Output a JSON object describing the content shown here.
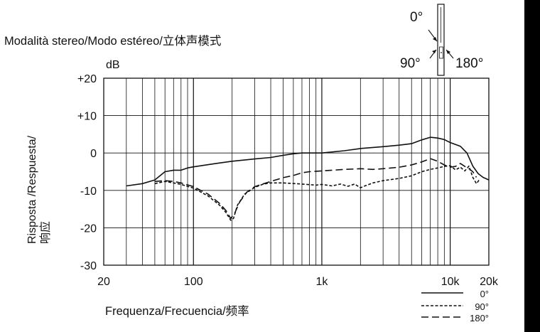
{
  "title": "Modalità stereo/Modo estéreo/立体声模式",
  "chart_data": {
    "type": "line",
    "ylabel_lines": [
      "Risposta /Respuesta/",
      "响应"
    ],
    "xlabel": "Frequenza/Frecuencia/频率",
    "y_unit": "dB",
    "x_scale": "log",
    "xlim": [
      20,
      20000
    ],
    "ylim": [
      -30,
      20
    ],
    "x_ticks": [
      {
        "value": 20,
        "label": "20"
      },
      {
        "value": 100,
        "label": "100"
      },
      {
        "value": 1000,
        "label": "1k"
      },
      {
        "value": 10000,
        "label": "10k"
      },
      {
        "value": 20000,
        "label": "20k"
      }
    ],
    "y_ticks": [
      {
        "value": 20,
        "label": "+20"
      },
      {
        "value": 10,
        "label": "+10"
      },
      {
        "value": 0,
        "label": "0"
      },
      {
        "value": -10,
        "label": "-10"
      },
      {
        "value": -20,
        "label": "-20"
      },
      {
        "value": -30,
        "label": "-30"
      }
    ],
    "grid": true,
    "legend_position": "bottom-right",
    "series": [
      {
        "name": "0°",
        "dash": "solid",
        "points": [
          [
            30,
            -8.8
          ],
          [
            40,
            -8.2
          ],
          [
            50,
            -7.2
          ],
          [
            60,
            -5
          ],
          [
            70,
            -4.6
          ],
          [
            80,
            -4.6
          ],
          [
            90,
            -4
          ],
          [
            100,
            -3.7
          ],
          [
            150,
            -2.8
          ],
          [
            200,
            -2.2
          ],
          [
            300,
            -1.6
          ],
          [
            400,
            -1.2
          ],
          [
            500,
            -0.6
          ],
          [
            600,
            -0.2
          ],
          [
            700,
            0
          ],
          [
            1000,
            0
          ],
          [
            1500,
            0.6
          ],
          [
            2000,
            1.2
          ],
          [
            3000,
            1.7
          ],
          [
            4000,
            2.1
          ],
          [
            5000,
            2.5
          ],
          [
            6000,
            3.5
          ],
          [
            7000,
            4.2
          ],
          [
            8000,
            4
          ],
          [
            9000,
            3.6
          ],
          [
            10000,
            2.8
          ],
          [
            12000,
            1.8
          ],
          [
            13500,
            0
          ],
          [
            15000,
            -3.5
          ],
          [
            16500,
            -5.5
          ],
          [
            18000,
            -6.5
          ],
          [
            20000,
            -7.2
          ]
        ]
      },
      {
        "name": "90°",
        "dash": "short",
        "points": [
          [
            50,
            -8.2
          ],
          [
            60,
            -7.6
          ],
          [
            70,
            -8
          ],
          [
            80,
            -8.4
          ],
          [
            100,
            -9.4
          ],
          [
            130,
            -11.5
          ],
          [
            160,
            -14
          ],
          [
            180,
            -16
          ],
          [
            195,
            -18
          ],
          [
            205,
            -17.5
          ],
          [
            220,
            -14
          ],
          [
            250,
            -11
          ],
          [
            300,
            -9.2
          ],
          [
            350,
            -8.3
          ],
          [
            400,
            -8
          ],
          [
            500,
            -8
          ],
          [
            700,
            -8.3
          ],
          [
            900,
            -8.6
          ],
          [
            1000,
            -8.4
          ],
          [
            1200,
            -8.8
          ],
          [
            1400,
            -8.3
          ],
          [
            1600,
            -8.9
          ],
          [
            1800,
            -8.3
          ],
          [
            2000,
            -9.3
          ],
          [
            2200,
            -8.7
          ],
          [
            2500,
            -8
          ],
          [
            3000,
            -7.4
          ],
          [
            4000,
            -6.8
          ],
          [
            5000,
            -6.1
          ],
          [
            6000,
            -5
          ],
          [
            7000,
            -4.4
          ],
          [
            8000,
            -4
          ],
          [
            9000,
            -3.6
          ],
          [
            10000,
            -3.4
          ],
          [
            11000,
            -4.5
          ],
          [
            12000,
            -3.8
          ],
          [
            13000,
            -4.8
          ],
          [
            14000,
            -3.5
          ],
          [
            15000,
            -6.5
          ],
          [
            16000,
            -8.2
          ],
          [
            17000,
            -7
          ]
        ]
      },
      {
        "name": "180°",
        "dash": "long",
        "points": [
          [
            50,
            -7.6
          ],
          [
            60,
            -7.4
          ],
          [
            70,
            -7.6
          ],
          [
            80,
            -8
          ],
          [
            100,
            -9
          ],
          [
            130,
            -11
          ],
          [
            160,
            -13.5
          ],
          [
            180,
            -15.5
          ],
          [
            195,
            -17.5
          ],
          [
            210,
            -16
          ],
          [
            230,
            -13
          ],
          [
            260,
            -10.5
          ],
          [
            300,
            -9
          ],
          [
            400,
            -7.6
          ],
          [
            500,
            -6.6
          ],
          [
            600,
            -6
          ],
          [
            700,
            -5.3
          ],
          [
            800,
            -5
          ],
          [
            1000,
            -4.8
          ],
          [
            1500,
            -4.4
          ],
          [
            2000,
            -4.2
          ],
          [
            2500,
            -4.4
          ],
          [
            3000,
            -4.2
          ],
          [
            4000,
            -3.8
          ],
          [
            5000,
            -3.2
          ],
          [
            6000,
            -2.4
          ],
          [
            7000,
            -1.5
          ],
          [
            8000,
            -2.2
          ],
          [
            9000,
            -3.2
          ],
          [
            10000,
            -3.8
          ],
          [
            11000,
            -3.6
          ],
          [
            12000,
            -2.8
          ],
          [
            13000,
            -3.6
          ],
          [
            14000,
            -4.2
          ],
          [
            15000,
            -5
          ],
          [
            16000,
            -6.5
          ]
        ]
      }
    ]
  },
  "polar_diagram": {
    "angle_0": "0°",
    "angle_90": "90°",
    "angle_180": "180°"
  },
  "colors": {
    "line": "#111111",
    "grid": "#111111",
    "background": "#ffffff",
    "right_bar": "#000000"
  }
}
